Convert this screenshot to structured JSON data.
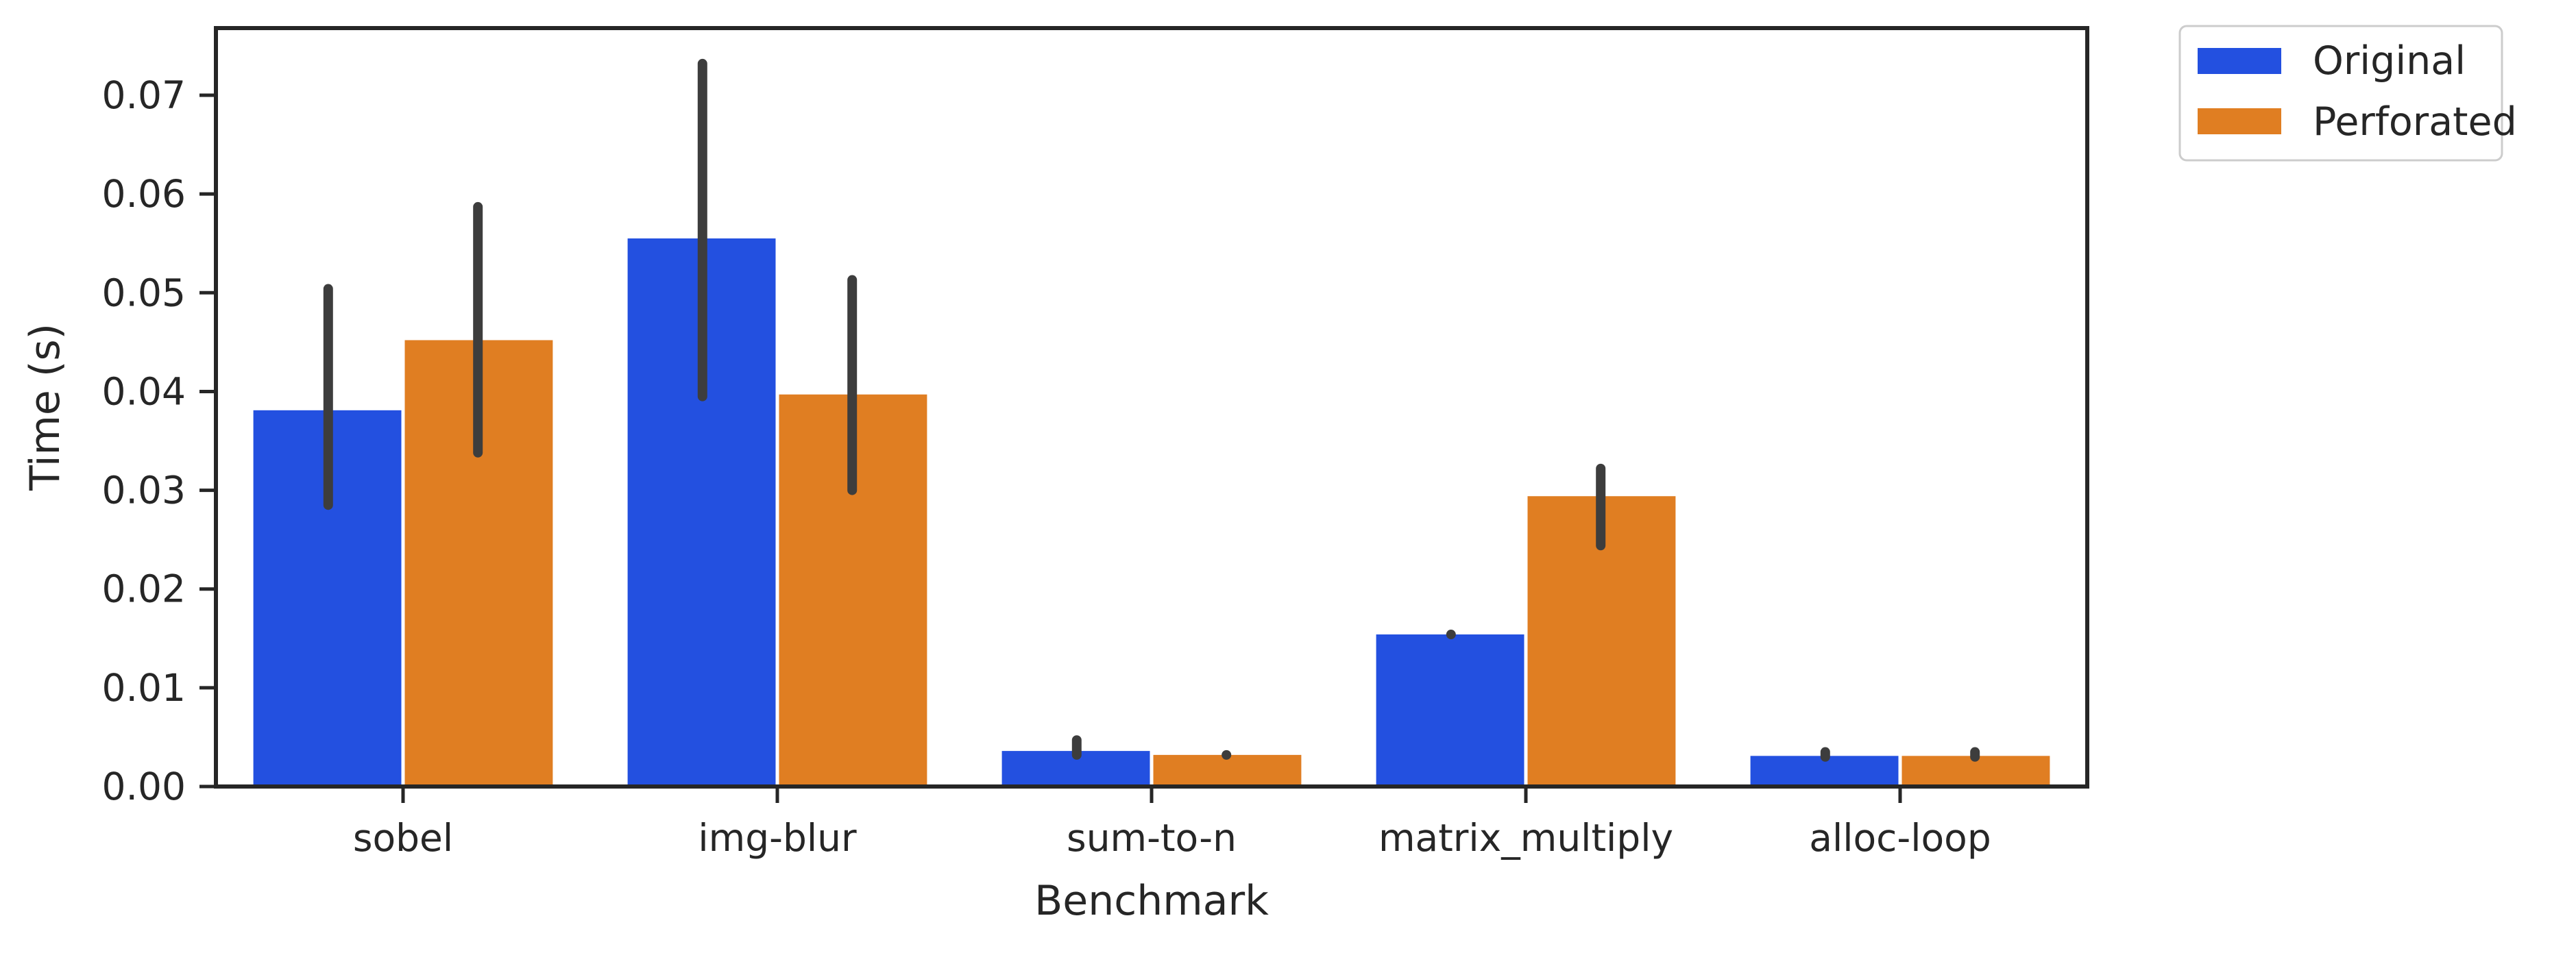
{
  "chart_data": {
    "type": "bar",
    "title": "",
    "xlabel": "Benchmark",
    "ylabel": "Time (s)",
    "ylim": [
      0,
      0.0768
    ],
    "yticks": [
      0.0,
      0.01,
      0.02,
      0.03,
      0.04,
      0.05,
      0.06,
      0.07
    ],
    "ytick_labels": [
      "0.00",
      "0.01",
      "0.02",
      "0.03",
      "0.04",
      "0.05",
      "0.06",
      "0.07"
    ],
    "categories": [
      "sobel",
      "img-blur",
      "sum-to-n",
      "matrix_multiply",
      "alloc-loop"
    ],
    "series": [
      {
        "name": "Original",
        "color": "#2350e0",
        "values": [
          0.0381,
          0.0555,
          0.0036,
          0.0154,
          0.0031
        ],
        "ci_low": [
          0.0285,
          0.0395,
          0.0032,
          0.0154,
          0.003
        ],
        "ci_high": [
          0.0504,
          0.0732,
          0.0047,
          0.0154,
          0.0035
        ]
      },
      {
        "name": "Perforated",
        "color": "#e07e22",
        "values": [
          0.0452,
          0.0397,
          0.0032,
          0.0294,
          0.0031
        ],
        "ci_low": [
          0.0338,
          0.03,
          0.0032,
          0.0244,
          0.003
        ],
        "ci_high": [
          0.0587,
          0.0513,
          0.0032,
          0.0322,
          0.0035
        ]
      }
    ],
    "errorbar_color": "#3d3d3d",
    "legend_position": "outside top-right",
    "grid": false
  }
}
